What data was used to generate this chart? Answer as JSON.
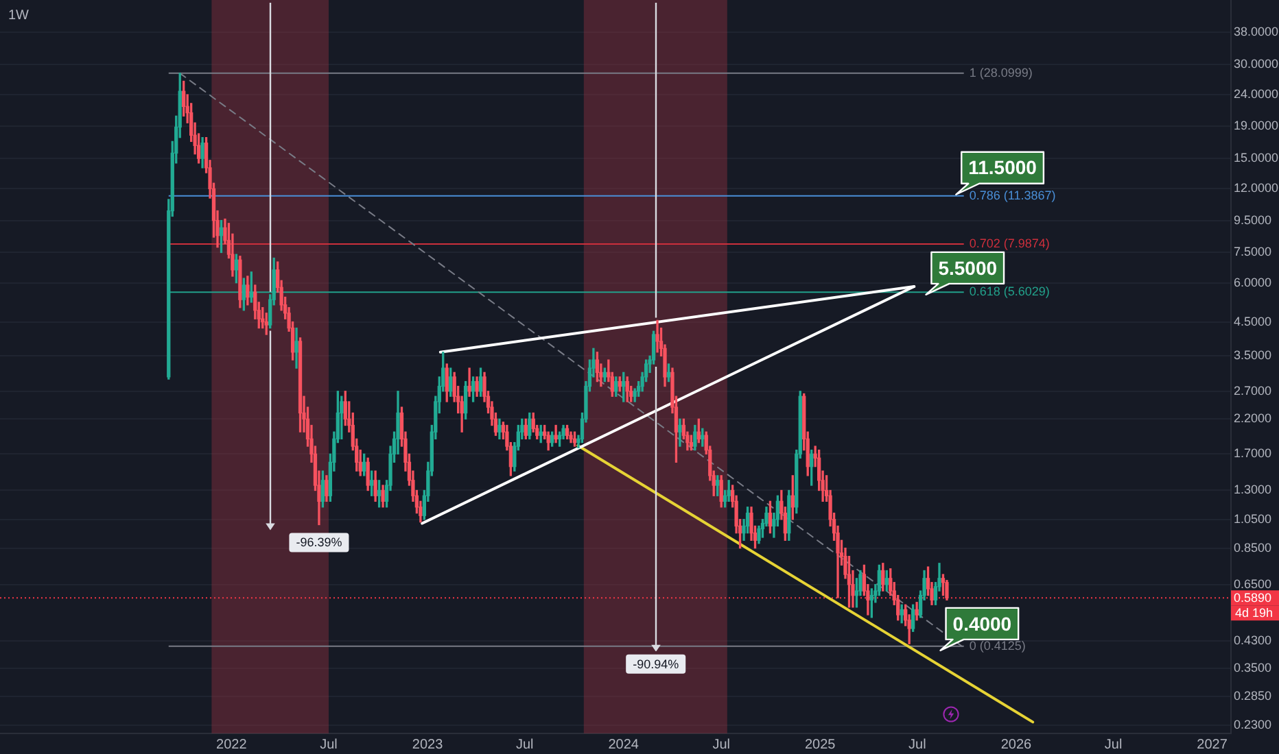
{
  "chart_data": {
    "type": "candlestick",
    "title": "1W",
    "x": [
      "2021-09-06",
      "2021-09-13",
      "2021-09-20",
      "2021-09-27",
      "2021-10-04",
      "2021-10-11",
      "2021-10-18",
      "2021-10-25",
      "2021-11-01",
      "2021-11-08",
      "2021-11-15",
      "2021-11-22",
      "2021-11-29",
      "2021-12-06",
      "2021-12-13",
      "2021-12-20",
      "2021-12-27",
      "2022-01-03",
      "2022-01-10",
      "2022-01-17",
      "2022-01-24",
      "2022-01-31",
      "2022-02-07",
      "2022-02-14",
      "2022-02-21",
      "2022-02-28",
      "2022-03-07",
      "2022-03-14",
      "2022-03-21",
      "2022-03-28",
      "2022-04-04",
      "2022-04-11",
      "2022-04-18",
      "2022-04-25",
      "2022-05-02",
      "2022-05-09",
      "2022-05-16",
      "2022-05-23",
      "2022-05-30",
      "2022-06-06",
      "2022-06-13",
      "2022-06-20",
      "2022-06-27",
      "2022-07-04",
      "2022-07-11",
      "2022-07-18",
      "2022-07-25",
      "2022-08-01",
      "2022-08-08",
      "2022-08-15",
      "2022-08-22",
      "2022-08-29",
      "2022-09-05",
      "2022-09-12",
      "2022-09-19",
      "2022-09-26",
      "2022-10-03",
      "2022-10-10",
      "2022-10-17",
      "2022-10-24",
      "2022-10-31",
      "2022-11-07",
      "2022-11-14",
      "2022-11-21",
      "2022-11-28",
      "2022-12-05",
      "2022-12-12",
      "2022-12-19",
      "2022-12-26",
      "2023-01-02",
      "2023-01-09",
      "2023-01-16",
      "2023-01-23",
      "2023-01-30",
      "2023-02-06",
      "2023-02-13",
      "2023-02-20",
      "2023-02-27",
      "2023-03-06",
      "2023-03-13",
      "2023-03-20",
      "2023-03-27",
      "2023-04-03",
      "2023-04-10",
      "2023-04-17",
      "2023-04-24",
      "2023-05-01",
      "2023-05-08",
      "2023-05-15",
      "2023-05-22",
      "2023-05-29",
      "2023-06-05",
      "2023-06-12",
      "2023-06-19",
      "2023-06-26",
      "2023-07-03",
      "2023-07-10",
      "2023-07-17",
      "2023-07-24",
      "2023-07-31",
      "2023-08-07",
      "2023-08-14",
      "2023-08-21",
      "2023-08-28",
      "2023-09-04",
      "2023-09-11",
      "2023-09-18",
      "2023-09-25",
      "2023-10-02",
      "2023-10-09",
      "2023-10-16",
      "2023-10-23",
      "2023-10-30",
      "2023-11-06",
      "2023-11-13",
      "2023-11-20",
      "2023-11-27",
      "2023-12-04",
      "2023-12-11",
      "2023-12-18",
      "2023-12-25",
      "2024-01-01",
      "2024-01-08",
      "2024-01-15",
      "2024-01-22",
      "2024-01-29",
      "2024-02-05",
      "2024-02-12",
      "2024-02-19",
      "2024-02-26",
      "2024-03-04",
      "2024-03-11",
      "2024-03-18",
      "2024-03-25",
      "2024-04-01",
      "2024-04-08",
      "2024-04-15",
      "2024-04-22",
      "2024-04-29",
      "2024-05-06",
      "2024-05-13",
      "2024-05-20",
      "2024-05-27",
      "2024-06-03",
      "2024-06-10",
      "2024-06-17",
      "2024-06-24",
      "2024-07-01",
      "2024-07-08",
      "2024-07-15",
      "2024-07-22",
      "2024-07-29",
      "2024-08-05",
      "2024-08-12",
      "2024-08-19",
      "2024-08-26",
      "2024-09-02",
      "2024-09-09",
      "2024-09-16",
      "2024-09-23",
      "2024-09-30",
      "2024-10-07",
      "2024-10-14",
      "2024-10-21",
      "2024-10-28",
      "2024-11-04",
      "2024-11-11",
      "2024-11-18",
      "2024-11-25",
      "2024-12-02",
      "2024-12-09",
      "2024-12-16",
      "2024-12-23",
      "2024-12-30",
      "2025-01-06",
      "2025-01-13",
      "2025-01-20",
      "2025-01-27",
      "2025-02-03",
      "2025-02-10",
      "2025-02-17",
      "2025-02-24",
      "2025-03-03",
      "2025-03-10",
      "2025-03-17",
      "2025-03-24",
      "2025-03-31",
      "2025-04-07",
      "2025-04-14",
      "2025-04-21",
      "2025-04-28",
      "2025-05-05",
      "2025-05-12",
      "2025-05-19",
      "2025-05-26",
      "2025-06-02",
      "2025-06-09",
      "2025-06-16",
      "2025-06-23",
      "2025-06-30",
      "2025-07-07",
      "2025-07-14",
      "2025-07-21",
      "2025-07-28",
      "2025-08-04",
      "2025-08-11",
      "2025-08-18",
      "2025-08-25"
    ],
    "ohlc": [
      [
        3.0,
        11.1,
        2.95,
        10.2
      ],
      [
        10.2,
        17.0,
        9.8,
        15.6
      ],
      [
        15.6,
        20.5,
        14.5,
        18.9
      ],
      [
        18.9,
        28.0999,
        17.5,
        24.6
      ],
      [
        24.6,
        26.5,
        20.5,
        22.0
      ],
      [
        22.0,
        24.0,
        19.5,
        21.0
      ],
      [
        21.0,
        22.5,
        17.0,
        17.8
      ],
      [
        17.8,
        19.5,
        15.5,
        16.5
      ],
      [
        16.5,
        18.0,
        14.5,
        15.0
      ],
      [
        15.0,
        17.5,
        14.0,
        16.8
      ],
      [
        16.8,
        17.5,
        13.5,
        14.0
      ],
      [
        14.0,
        14.8,
        11.2,
        12.0
      ],
      [
        12.0,
        12.5,
        8.4,
        9.5
      ],
      [
        9.5,
        10.2,
        7.8,
        8.5
      ],
      [
        8.5,
        9.5,
        7.5,
        9.0
      ],
      [
        9.0,
        9.6,
        8.0,
        8.2
      ],
      [
        8.2,
        9.3,
        7.2,
        7.4
      ],
      [
        7.4,
        8.6,
        6.3,
        6.6
      ],
      [
        6.6,
        7.4,
        6.0,
        7.1
      ],
      [
        7.1,
        7.3,
        5.0,
        5.3
      ],
      [
        5.3,
        6.2,
        4.9,
        5.9
      ],
      [
        5.9,
        6.3,
        5.1,
        5.4
      ],
      [
        5.4,
        6.5,
        5.2,
        5.6
      ],
      [
        5.6,
        5.9,
        4.6,
        4.9
      ],
      [
        4.9,
        5.2,
        4.3,
        4.6
      ],
      [
        4.6,
        5.0,
        4.3,
        4.5
      ],
      [
        4.5,
        4.8,
        4.1,
        4.4
      ],
      [
        4.4,
        5.5,
        4.3,
        5.3
      ],
      [
        5.3,
        7.2,
        5.1,
        6.6
      ],
      [
        6.6,
        7.0,
        5.6,
        5.8
      ],
      [
        5.8,
        6.1,
        4.9,
        5.1
      ],
      [
        5.1,
        5.4,
        4.6,
        4.8
      ],
      [
        4.8,
        5.0,
        4.2,
        4.3
      ],
      [
        4.3,
        4.5,
        3.4,
        3.6
      ],
      [
        3.6,
        4.3,
        3.2,
        3.9
      ],
      [
        3.9,
        4.0,
        2.0,
        2.3
      ],
      [
        2.3,
        2.6,
        2.0,
        2.2
      ],
      [
        2.2,
        2.4,
        1.8,
        1.9
      ],
      [
        1.9,
        2.1,
        1.6,
        1.7
      ],
      [
        1.7,
        1.8,
        1.3,
        1.35
      ],
      [
        1.35,
        1.5,
        1.01,
        1.2
      ],
      [
        1.2,
        1.5,
        1.15,
        1.4
      ],
      [
        1.4,
        1.45,
        1.2,
        1.25
      ],
      [
        1.25,
        1.7,
        1.2,
        1.6
      ],
      [
        1.6,
        2.0,
        1.5,
        1.9
      ],
      [
        1.9,
        2.7,
        1.85,
        2.3
      ],
      [
        2.3,
        2.6,
        1.9,
        2.5
      ],
      [
        2.5,
        2.7,
        2.1,
        2.2
      ],
      [
        2.2,
        2.5,
        2.0,
        2.1
      ],
      [
        2.1,
        2.3,
        1.75,
        1.8
      ],
      [
        1.8,
        1.9,
        1.5,
        1.6
      ],
      [
        1.6,
        1.75,
        1.45,
        1.5
      ],
      [
        1.5,
        1.7,
        1.45,
        1.6
      ],
      [
        1.6,
        1.65,
        1.3,
        1.35
      ],
      [
        1.35,
        1.5,
        1.25,
        1.4
      ],
      [
        1.4,
        1.5,
        1.2,
        1.25
      ],
      [
        1.25,
        1.4,
        1.15,
        1.3
      ],
      [
        1.3,
        1.35,
        1.15,
        1.2
      ],
      [
        1.2,
        1.4,
        1.15,
        1.35
      ],
      [
        1.35,
        1.8,
        1.3,
        1.7
      ],
      [
        1.7,
        2.0,
        1.6,
        1.9
      ],
      [
        1.9,
        2.7,
        1.7,
        2.3
      ],
      [
        2.3,
        2.4,
        1.8,
        1.9
      ],
      [
        1.9,
        2.0,
        1.5,
        1.6
      ],
      [
        1.6,
        1.7,
        1.35,
        1.4
      ],
      [
        1.4,
        1.5,
        1.2,
        1.25
      ],
      [
        1.25,
        1.3,
        1.1,
        1.15
      ],
      [
        1.15,
        1.2,
        1.03,
        1.08
      ],
      [
        1.08,
        1.3,
        1.05,
        1.25
      ],
      [
        1.25,
        1.6,
        1.2,
        1.5
      ],
      [
        1.5,
        2.1,
        1.45,
        2.0
      ],
      [
        2.0,
        2.6,
        1.9,
        2.5
      ],
      [
        2.5,
        3.0,
        2.3,
        2.8
      ],
      [
        2.8,
        3.6,
        2.7,
        3.2
      ],
      [
        3.2,
        3.3,
        2.5,
        2.7
      ],
      [
        2.7,
        3.2,
        2.6,
        3.0
      ],
      [
        3.0,
        3.1,
        2.5,
        2.6
      ],
      [
        2.6,
        2.8,
        2.3,
        2.5
      ],
      [
        2.5,
        2.6,
        2.0,
        2.3
      ],
      [
        2.3,
        2.9,
        2.2,
        2.8
      ],
      [
        2.8,
        3.2,
        2.6,
        2.7
      ],
      [
        2.7,
        3.0,
        2.5,
        2.9
      ],
      [
        2.9,
        3.0,
        2.6,
        2.7
      ],
      [
        2.7,
        3.2,
        2.6,
        3.0
      ],
      [
        3.0,
        3.1,
        2.5,
        2.6
      ],
      [
        2.6,
        2.7,
        2.3,
        2.4
      ],
      [
        2.4,
        2.5,
        2.1,
        2.2
      ],
      [
        2.2,
        2.3,
        1.95,
        2.0
      ],
      [
        2.0,
        2.2,
        1.9,
        2.1
      ],
      [
        2.1,
        2.15,
        1.9,
        2.0
      ],
      [
        2.0,
        2.1,
        1.75,
        1.8
      ],
      [
        1.8,
        1.85,
        1.45,
        1.55
      ],
      [
        1.55,
        1.85,
        1.5,
        1.8
      ],
      [
        1.8,
        2.1,
        1.75,
        2.0
      ],
      [
        2.0,
        2.2,
        1.9,
        2.1
      ],
      [
        2.1,
        2.2,
        1.9,
        1.95
      ],
      [
        1.95,
        2.3,
        1.9,
        2.2
      ],
      [
        2.2,
        2.3,
        2.0,
        2.05
      ],
      [
        2.05,
        2.1,
        1.9,
        1.95
      ],
      [
        1.95,
        2.1,
        1.85,
        2.0
      ],
      [
        2.0,
        2.1,
        1.9,
        1.95
      ],
      [
        1.95,
        2.0,
        1.75,
        1.85
      ],
      [
        1.85,
        2.0,
        1.8,
        1.95
      ],
      [
        1.95,
        2.1,
        1.85,
        1.9
      ],
      [
        1.9,
        2.0,
        1.8,
        1.95
      ],
      [
        1.95,
        2.1,
        1.9,
        2.05
      ],
      [
        2.05,
        2.1,
        1.9,
        1.95
      ],
      [
        1.95,
        2.0,
        1.85,
        1.9
      ],
      [
        1.9,
        2.0,
        1.8,
        1.85
      ],
      [
        1.85,
        1.95,
        1.78,
        1.9
      ],
      [
        1.9,
        2.3,
        1.85,
        2.2
      ],
      [
        2.2,
        2.9,
        2.15,
        2.8
      ],
      [
        2.8,
        3.4,
        2.7,
        3.2
      ],
      [
        3.2,
        3.7,
        3.0,
        3.4
      ],
      [
        3.4,
        3.6,
        2.9,
        3.1
      ],
      [
        3.1,
        3.3,
        2.8,
        3.0
      ],
      [
        3.0,
        3.2,
        2.9,
        3.1
      ],
      [
        3.1,
        3.4,
        2.9,
        3.0
      ],
      [
        3.0,
        3.1,
        2.6,
        2.7
      ],
      [
        2.7,
        3.0,
        2.6,
        2.9
      ],
      [
        2.9,
        3.0,
        2.7,
        2.8
      ],
      [
        2.8,
        3.1,
        2.5,
        2.9
      ],
      [
        2.9,
        3.0,
        2.5,
        2.7
      ],
      [
        2.7,
        2.8,
        2.5,
        2.6
      ],
      [
        2.6,
        2.75,
        2.5,
        2.7
      ],
      [
        2.7,
        2.9,
        2.6,
        2.8
      ],
      [
        2.8,
        3.1,
        2.7,
        3.0
      ],
      [
        3.0,
        3.4,
        2.9,
        3.3
      ],
      [
        3.3,
        3.5,
        3.1,
        3.4
      ],
      [
        3.4,
        4.2,
        3.3,
        4.1
      ],
      [
        4.1,
        4.55,
        3.6,
        3.9
      ],
      [
        3.9,
        4.3,
        3.5,
        3.7
      ],
      [
        3.7,
        3.8,
        2.8,
        3.0
      ],
      [
        3.0,
        3.3,
        2.9,
        3.1
      ],
      [
        3.1,
        3.2,
        2.3,
        2.4
      ],
      [
        2.4,
        2.6,
        1.6,
        2.0
      ],
      [
        2.0,
        2.2,
        1.8,
        2.1
      ],
      [
        2.1,
        2.2,
        1.9,
        1.95
      ],
      [
        1.95,
        2.0,
        1.75,
        1.85
      ],
      [
        1.85,
        1.95,
        1.75,
        1.8
      ],
      [
        1.8,
        2.1,
        1.75,
        2.0
      ],
      [
        2.0,
        2.2,
        1.85,
        1.9
      ],
      [
        1.9,
        2.05,
        1.8,
        1.95
      ],
      [
        1.95,
        2.0,
        1.7,
        1.75
      ],
      [
        1.75,
        1.8,
        1.4,
        1.45
      ],
      [
        1.45,
        1.5,
        1.25,
        1.35
      ],
      [
        1.35,
        1.45,
        1.25,
        1.4
      ],
      [
        1.4,
        1.45,
        1.15,
        1.2
      ],
      [
        1.2,
        1.3,
        1.15,
        1.25
      ],
      [
        1.25,
        1.4,
        1.2,
        1.3
      ],
      [
        1.3,
        1.35,
        1.15,
        1.2
      ],
      [
        1.2,
        1.25,
        0.95,
        1.0
      ],
      [
        1.0,
        1.05,
        0.85,
        0.95
      ],
      [
        0.95,
        1.05,
        0.9,
        1.0
      ],
      [
        1.0,
        1.15,
        0.95,
        1.1
      ],
      [
        1.1,
        1.15,
        0.9,
        0.95
      ],
      [
        0.95,
        1.0,
        0.85,
        0.9
      ],
      [
        0.9,
        1.0,
        0.88,
        0.98
      ],
      [
        0.98,
        1.05,
        0.92,
        1.02
      ],
      [
        1.02,
        1.15,
        1.0,
        1.1
      ],
      [
        1.1,
        1.2,
        0.95,
        1.0
      ],
      [
        1.0,
        1.1,
        0.92,
        1.05
      ],
      [
        1.05,
        1.25,
        1.0,
        1.2
      ],
      [
        1.2,
        1.3,
        1.05,
        1.1
      ],
      [
        1.1,
        1.15,
        0.9,
        0.95
      ],
      [
        0.95,
        1.3,
        0.9,
        1.25
      ],
      [
        1.25,
        1.45,
        1.05,
        1.15
      ],
      [
        1.15,
        1.75,
        1.1,
        1.7
      ],
      [
        1.7,
        2.7,
        1.65,
        2.6
      ],
      [
        2.6,
        2.65,
        1.75,
        1.9
      ],
      [
        1.9,
        2.0,
        1.45,
        1.55
      ],
      [
        1.55,
        1.75,
        1.35,
        1.7
      ],
      [
        1.7,
        1.8,
        1.55,
        1.65
      ],
      [
        1.65,
        1.75,
        1.3,
        1.4
      ],
      [
        1.4,
        1.5,
        1.2,
        1.3
      ],
      [
        1.3,
        1.45,
        1.2,
        1.25
      ],
      [
        1.25,
        1.3,
        1.0,
        1.05
      ],
      [
        1.05,
        1.1,
        0.9,
        0.95
      ],
      [
        0.95,
        1.0,
        0.59,
        0.82
      ],
      [
        0.82,
        0.9,
        0.75,
        0.8
      ],
      [
        0.8,
        0.85,
        0.68,
        0.7
      ],
      [
        0.7,
        0.8,
        0.55,
        0.65
      ],
      [
        0.65,
        0.72,
        0.55,
        0.6
      ],
      [
        0.6,
        0.68,
        0.55,
        0.62
      ],
      [
        0.62,
        0.72,
        0.6,
        0.7
      ],
      [
        0.7,
        0.75,
        0.6,
        0.62
      ],
      [
        0.62,
        0.65,
        0.52,
        0.58
      ],
      [
        0.58,
        0.63,
        0.51,
        0.6
      ],
      [
        0.6,
        0.65,
        0.57,
        0.62
      ],
      [
        0.62,
        0.75,
        0.6,
        0.72
      ],
      [
        0.72,
        0.76,
        0.62,
        0.65
      ],
      [
        0.65,
        0.72,
        0.62,
        0.68
      ],
      [
        0.68,
        0.73,
        0.6,
        0.62
      ],
      [
        0.62,
        0.66,
        0.56,
        0.58
      ],
      [
        0.58,
        0.6,
        0.5,
        0.52
      ],
      [
        0.52,
        0.56,
        0.49,
        0.54
      ],
      [
        0.54,
        0.56,
        0.48,
        0.5
      ],
      [
        0.5,
        0.52,
        0.42,
        0.47
      ],
      [
        0.47,
        0.56,
        0.46,
        0.54
      ],
      [
        0.54,
        0.57,
        0.5,
        0.52
      ],
      [
        0.52,
        0.62,
        0.51,
        0.6
      ],
      [
        0.6,
        0.72,
        0.58,
        0.68
      ],
      [
        0.68,
        0.74,
        0.6,
        0.63
      ],
      [
        0.63,
        0.66,
        0.56,
        0.58
      ],
      [
        0.58,
        0.66,
        0.56,
        0.64
      ],
      [
        0.64,
        0.76,
        0.62,
        0.68
      ],
      [
        0.68,
        0.7,
        0.6,
        0.66
      ],
      [
        0.66,
        0.67,
        0.58,
        0.589
      ]
    ],
    "colors": [
      "#22ab94",
      "#22ab94",
      "#22ab94",
      "#22ab94",
      "#f7525f",
      "#f7525f",
      "#f7525f",
      "#f7525f",
      "#f7525f",
      "#22ab94",
      "#f7525f",
      "#f7525f",
      "#f7525f",
      "#f7525f",
      "#22ab94",
      "#f7525f",
      "#f7525f",
      "#f7525f",
      "#22ab94",
      "#f7525f",
      "#22ab94",
      "#f7525f",
      "#22ab94",
      "#f7525f",
      "#f7525f",
      "#f7525f",
      "#f7525f",
      "#22ab94",
      "#22ab94",
      "#f7525f",
      "#f7525f",
      "#f7525f",
      "#f7525f",
      "#f7525f",
      "#22ab94",
      "#f7525f",
      "#f7525f",
      "#f7525f",
      "#f7525f",
      "#f7525f",
      "#f7525f",
      "#22ab94",
      "#f7525f",
      "#22ab94",
      "#22ab94",
      "#22ab94",
      "#22ab94",
      "#f7525f",
      "#f7525f",
      "#f7525f",
      "#f7525f",
      "#f7525f",
      "#22ab94",
      "#f7525f",
      "#22ab94",
      "#f7525f",
      "#22ab94",
      "#f7525f",
      "#22ab94",
      "#22ab94",
      "#22ab94",
      "#22ab94",
      "#f7525f",
      "#f7525f",
      "#f7525f",
      "#f7525f",
      "#f7525f",
      "#f7525f",
      "#22ab94",
      "#22ab94",
      "#22ab94",
      "#22ab94",
      "#22ab94",
      "#22ab94",
      "#f7525f",
      "#22ab94",
      "#f7525f",
      "#f7525f",
      "#f7525f",
      "#22ab94",
      "#f7525f",
      "#22ab94",
      "#f7525f",
      "#22ab94",
      "#f7525f",
      "#f7525f",
      "#f7525f",
      "#f7525f",
      "#22ab94",
      "#f7525f",
      "#f7525f",
      "#f7525f",
      "#22ab94",
      "#22ab94",
      "#22ab94",
      "#f7525f",
      "#22ab94",
      "#f7525f",
      "#f7525f",
      "#22ab94",
      "#f7525f",
      "#f7525f",
      "#22ab94",
      "#f7525f",
      "#22ab94",
      "#22ab94",
      "#f7525f",
      "#f7525f",
      "#f7525f",
      "#22ab94",
      "#22ab94",
      "#22ab94",
      "#22ab94",
      "#22ab94",
      "#f7525f",
      "#f7525f",
      "#22ab94",
      "#f7525f",
      "#f7525f",
      "#22ab94",
      "#f7525f",
      "#22ab94",
      "#f7525f",
      "#f7525f",
      "#22ab94",
      "#22ab94",
      "#22ab94",
      "#22ab94",
      "#22ab94",
      "#22ab94",
      "#f7525f",
      "#f7525f",
      "#f7525f",
      "#22ab94",
      "#f7525f",
      "#f7525f",
      "#22ab94",
      "#f7525f",
      "#f7525f",
      "#f7525f",
      "#22ab94",
      "#f7525f",
      "#22ab94",
      "#f7525f",
      "#f7525f",
      "#f7525f",
      "#22ab94",
      "#f7525f",
      "#22ab94",
      "#22ab94",
      "#f7525f",
      "#f7525f",
      "#f7525f",
      "#22ab94",
      "#22ab94",
      "#f7525f",
      "#f7525f",
      "#22ab94",
      "#22ab94",
      "#22ab94",
      "#f7525f",
      "#22ab94",
      "#22ab94",
      "#f7525f",
      "#f7525f",
      "#22ab94",
      "#f7525f",
      "#22ab94",
      "#22ab94",
      "#f7525f",
      "#f7525f",
      "#22ab94",
      "#f7525f",
      "#f7525f",
      "#f7525f",
      "#f7525f",
      "#f7525f",
      "#f7525f",
      "#f7525f",
      "#f7525f",
      "#f7525f",
      "#f7525f",
      "#f7525f",
      "#22ab94",
      "#22ab94",
      "#f7525f",
      "#f7525f",
      "#22ab94",
      "#22ab94",
      "#22ab94",
      "#f7525f",
      "#22ab94",
      "#f7525f",
      "#f7525f",
      "#f7525f",
      "#22ab94",
      "#f7525f",
      "#f7525f",
      "#22ab94",
      "#f7525f",
      "#22ab94",
      "#22ab94",
      "#f7525f",
      "#f7525f",
      "#22ab94",
      "#22ab94",
      "#f7525f",
      "#f7525f"
    ],
    "series": [
      {
        "type": "line",
        "x": [
          "2023-01-25",
          "2025-06-25"
        ],
        "values": [
          3.6,
          5.84
        ],
        "color": "#ffffff"
      },
      {
        "type": "line",
        "x": [
          "2022-12-22",
          "2025-06-25"
        ],
        "values": [
          1.02,
          5.84
        ],
        "color": "#ffffff"
      },
      {
        "type": "line",
        "x": [
          "2023-10-08",
          "2026-02-01"
        ],
        "values": [
          1.81,
          0.236
        ],
        "color": "#e6d335"
      },
      {
        "type": "line",
        "x": [
          "2021-09-27",
          "2025-09-22"
        ],
        "values": [
          28.0999,
          0.4125
        ],
        "color": "#787b86",
        "line_style": "dashed"
      }
    ],
    "xlim": [
      "2020-10-27",
      "2027-02-05"
    ],
    "xticks": [
      {
        "value": "2022-01-01",
        "label": "2022"
      },
      {
        "value": "2022-07-01",
        "label": "Jul"
      },
      {
        "value": "2023-01-01",
        "label": "2023"
      },
      {
        "value": "2023-07-01",
        "label": "Jul"
      },
      {
        "value": "2024-01-01",
        "label": "2024"
      },
      {
        "value": "2024-07-01",
        "label": "Jul"
      },
      {
        "value": "2025-01-01",
        "label": "2025"
      },
      {
        "value": "2025-07-01",
        "label": "Jul"
      },
      {
        "value": "2026-01-01",
        "label": "2026"
      },
      {
        "value": "2026-07-01",
        "label": "Jul"
      },
      {
        "value": "2027-01-01",
        "label": "2027"
      }
    ],
    "ylim": [
      0.217,
      48.2
    ],
    "yticks": [
      {
        "value": 0.23,
        "label": "0.2300"
      },
      {
        "value": 0.285,
        "label": "0.2850"
      },
      {
        "value": 0.35,
        "label": "0.3500"
      },
      {
        "value": 0.43,
        "label": "0.4300"
      },
      {
        "value": 0.65,
        "label": "0.6500"
      },
      {
        "value": 0.85,
        "label": "0.8500"
      },
      {
        "value": 1.05,
        "label": "1.0500"
      },
      {
        "value": 1.3,
        "label": "1.3000"
      },
      {
        "value": 1.7,
        "label": "1.7000"
      },
      {
        "value": 2.2,
        "label": "2.2000"
      },
      {
        "value": 2.7,
        "label": "2.7000"
      },
      {
        "value": 3.5,
        "label": "3.5000"
      },
      {
        "value": 4.5,
        "label": "4.5000"
      },
      {
        "value": 6,
        "label": "6.0000"
      },
      {
        "value": 7.5,
        "label": "7.5000"
      },
      {
        "value": 9.5,
        "label": "9.5000"
      },
      {
        "value": 12,
        "label": "12.0000"
      },
      {
        "value": 15,
        "label": "15.0000"
      },
      {
        "value": 19,
        "label": "19.0000"
      },
      {
        "value": 24,
        "label": "24.0000"
      },
      {
        "value": 30,
        "label": "30.0000"
      },
      {
        "value": 38,
        "label": "38.0000"
      }
    ],
    "log": true,
    "grid": "y",
    "ref_lines": [
      {
        "axis": "y",
        "value": 28.0999,
        "label": "1 (28.0999)",
        "color": "#787b86"
      },
      {
        "axis": "y",
        "value": 11.3867,
        "label": "0.786 (11.3867)",
        "color": "#4a8fd8"
      },
      {
        "axis": "y",
        "value": 7.9874,
        "label": "0.702 (7.9874)",
        "color": "#cc2f3c"
      },
      {
        "axis": "y",
        "value": 5.6029,
        "label": "0.618 (5.6029)",
        "color": "#22a18b"
      },
      {
        "axis": "y",
        "value": 0.4125,
        "label": "0 (0.4125)",
        "color": "#787b86"
      },
      {
        "axis": "y",
        "value": 0.589,
        "label": "0.5890",
        "color": "#f23645",
        "line_style": "dotted"
      }
    ],
    "bands": [
      {
        "axis": "x",
        "from": "2021-11-25",
        "to": "2022-07-01",
        "color": "#4a2430"
      },
      {
        "axis": "x",
        "from": "2023-10-19",
        "to": "2024-07-12",
        "color": "#4a2430"
      }
    ],
    "annotations": [
      {
        "text": "11.5000",
        "x": "2025-09-11",
        "y": 11.5
      },
      {
        "text": "5.5000",
        "x": "2025-07-17",
        "y": 5.5
      },
      {
        "text": "0.4000",
        "x": "2025-08-13",
        "y": 0.4
      },
      {
        "text": "-96.39%",
        "x": "2022-06-13",
        "y": 1.01
      },
      {
        "text": "-90.94%",
        "x": "2024-03-01",
        "y": 0.4125
      },
      "4d 19h"
    ]
  }
}
